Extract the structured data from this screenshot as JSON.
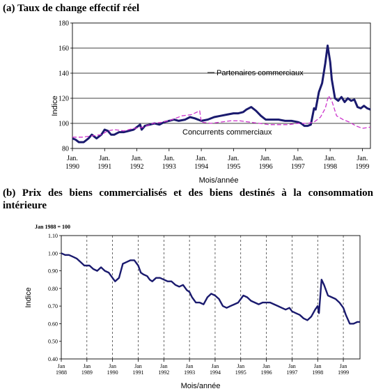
{
  "chart_data": [
    {
      "type": "line",
      "title": "(a) Taux de change effectif réel",
      "xlabel": "Mois/année",
      "ylabel": "Indice",
      "ylim": [
        80,
        180
      ],
      "yticks": [
        "80",
        "100",
        "120",
        "140",
        "160",
        "180"
      ],
      "xticks": [
        {
          "top": "Jan.",
          "bottom": "1990"
        },
        {
          "top": "Jan.",
          "bottom": "1991"
        },
        {
          "top": "Jan.",
          "bottom": "1992"
        },
        {
          "top": "Jan.",
          "bottom": "1993"
        },
        {
          "top": "Jan.",
          "bottom": "1994"
        },
        {
          "top": "Jan.",
          "bottom": "1995"
        },
        {
          "top": "Jan.",
          "bottom": "1996"
        },
        {
          "top": "Jan.",
          "bottom": "1997"
        },
        {
          "top": "Jan.",
          "bottom": "1998"
        },
        {
          "top": "Jan.",
          "bottom": "1999"
        }
      ],
      "xlim": [
        1990.0,
        1999.25
      ],
      "grid": "horizontal",
      "annotations": [
        "Partenaires commerciaux",
        "Concurrents commerciaux"
      ],
      "series": [
        {
          "name": "Partenaires commerciaux",
          "style": "solid-thick",
          "color": "#1a1a6e",
          "x": [
            1990.0,
            1990.1,
            1990.2,
            1990.35,
            1990.5,
            1990.6,
            1990.75,
            1990.9,
            1991.0,
            1991.1,
            1991.2,
            1991.3,
            1991.45,
            1991.6,
            1991.75,
            1991.9,
            1992.0,
            1992.1,
            1992.15,
            1992.25,
            1992.4,
            1992.55,
            1992.7,
            1992.85,
            1993.0,
            1993.15,
            1993.3,
            1993.5,
            1993.65,
            1993.8,
            1994.0,
            1994.2,
            1994.4,
            1994.6,
            1994.8,
            1995.0,
            1995.15,
            1995.3,
            1995.4,
            1995.55,
            1995.7,
            1995.85,
            1996.0,
            1996.2,
            1996.4,
            1996.6,
            1996.8,
            1997.0,
            1997.1,
            1997.2,
            1997.3,
            1997.4,
            1997.5,
            1997.55,
            1997.65,
            1997.75,
            1997.85,
            1997.92,
            1998.0,
            1998.05,
            1998.15,
            1998.25,
            1998.35,
            1998.45,
            1998.55,
            1998.65,
            1998.75,
            1998.85,
            1998.95,
            1999.05,
            1999.15,
            1999.25
          ],
          "values": [
            88,
            87,
            85,
            85,
            88,
            91,
            88,
            91,
            95,
            94,
            91,
            91,
            93,
            93,
            94,
            95,
            97,
            99,
            95,
            98,
            99,
            100,
            99,
            101,
            102,
            103,
            102,
            103,
            105,
            104,
            102,
            103,
            105,
            106,
            107,
            108,
            108,
            109,
            111,
            113,
            110,
            106,
            103,
            103,
            103,
            102,
            102,
            101,
            100,
            98,
            98,
            99,
            112,
            111,
            125,
            132,
            148,
            162,
            149,
            135,
            120,
            118,
            121,
            117,
            120,
            118,
            119,
            113,
            112,
            114,
            112,
            111
          ]
        },
        {
          "name": "Concurrents commerciaux",
          "style": "dashed",
          "color": "#cc33cc",
          "x": [
            1990.0,
            1990.3,
            1990.6,
            1990.9,
            1991.1,
            1991.3,
            1991.6,
            1991.9,
            1992.2,
            1992.5,
            1992.8,
            1993.1,
            1993.4,
            1993.7,
            1993.95,
            1994.0,
            1994.3,
            1994.6,
            1994.9,
            1995.2,
            1995.5,
            1995.8,
            1996.1,
            1996.4,
            1996.7,
            1997.0,
            1997.3,
            1997.5,
            1997.7,
            1997.85,
            1997.95,
            1998.05,
            1998.2,
            1998.4,
            1998.6,
            1998.8,
            1999.0,
            1999.25
          ],
          "values": [
            89,
            89,
            90,
            91,
            94,
            95,
            94,
            96,
            97,
            100,
            101,
            103,
            106,
            107,
            110,
            101,
            100,
            101,
            102,
            102,
            101,
            100,
            99,
            99,
            99,
            100,
            100,
            101,
            105,
            112,
            122,
            118,
            106,
            103,
            101,
            98,
            96,
            97
          ]
        }
      ]
    },
    {
      "type": "line",
      "title": "(b) Prix des biens commercialisés et des biens destinés à la consommation intérieure",
      "note": "Jan 1988 = 100",
      "xlabel": "Mois/année",
      "ylabel": "Indice",
      "ylim": [
        0.4,
        1.1
      ],
      "yticks": [
        "0.40",
        "0.50",
        "0.60",
        "0.70",
        "0.80",
        "0.90",
        "1.00",
        "1.10"
      ],
      "xticks": [
        {
          "top": "Jan",
          "bottom": "1988"
        },
        {
          "top": "Jan",
          "bottom": "1989"
        },
        {
          "top": "Jan",
          "bottom": "1990"
        },
        {
          "top": "Jan",
          "bottom": "1991"
        },
        {
          "top": "Jan",
          "bottom": "1992"
        },
        {
          "top": "Jan",
          "bottom": "1993"
        },
        {
          "top": "Jan",
          "bottom": "1994"
        },
        {
          "top": "Jan",
          "bottom": "1995"
        },
        {
          "top": "Jan",
          "bottom": "1996"
        },
        {
          "top": "Jan",
          "bottom": "1997"
        },
        {
          "top": "Jan",
          "bottom": "1998"
        },
        {
          "top": "Jan",
          "bottom": "1999"
        }
      ],
      "xlim": [
        1988.0,
        1999.65
      ],
      "grid": "vertical-dashed",
      "series": [
        {
          "name": "",
          "color": "#1a1a6e",
          "x": [
            1988.0,
            1988.15,
            1988.3,
            1988.45,
            1988.6,
            1988.75,
            1988.9,
            1989.0,
            1989.1,
            1989.25,
            1989.4,
            1989.55,
            1989.7,
            1989.85,
            1990.0,
            1990.1,
            1990.25,
            1990.4,
            1990.55,
            1990.7,
            1990.85,
            1991.0,
            1991.1,
            1991.2,
            1991.35,
            1991.45,
            1991.55,
            1991.7,
            1991.85,
            1992.0,
            1992.15,
            1992.3,
            1992.45,
            1992.6,
            1992.75,
            1992.9,
            1993.0,
            1993.1,
            1993.25,
            1993.4,
            1993.55,
            1993.7,
            1993.85,
            1994.0,
            1994.15,
            1994.3,
            1994.45,
            1994.6,
            1994.75,
            1994.9,
            1995.0,
            1995.1,
            1995.25,
            1995.4,
            1995.55,
            1995.7,
            1995.85,
            1996.0,
            1996.15,
            1996.3,
            1996.45,
            1996.6,
            1996.75,
            1996.9,
            1997.0,
            1997.15,
            1997.3,
            1997.45,
            1997.6,
            1997.75,
            1997.9,
            1998.0,
            1998.05,
            1998.15,
            1998.25,
            1998.4,
            1998.55,
            1998.7,
            1998.85,
            1999.0,
            1999.1,
            1999.25,
            1999.4,
            1999.55,
            1999.65
          ],
          "values": [
            1.0,
            0.99,
            0.99,
            0.98,
            0.97,
            0.95,
            0.93,
            0.93,
            0.93,
            0.91,
            0.9,
            0.92,
            0.9,
            0.89,
            0.86,
            0.84,
            0.86,
            0.94,
            0.95,
            0.96,
            0.96,
            0.93,
            0.89,
            0.88,
            0.87,
            0.85,
            0.84,
            0.86,
            0.86,
            0.85,
            0.84,
            0.84,
            0.82,
            0.81,
            0.82,
            0.79,
            0.78,
            0.75,
            0.72,
            0.72,
            0.71,
            0.75,
            0.77,
            0.76,
            0.74,
            0.7,
            0.69,
            0.7,
            0.71,
            0.72,
            0.74,
            0.76,
            0.75,
            0.73,
            0.72,
            0.71,
            0.72,
            0.72,
            0.72,
            0.71,
            0.7,
            0.69,
            0.68,
            0.69,
            0.67,
            0.66,
            0.65,
            0.63,
            0.62,
            0.64,
            0.68,
            0.7,
            0.66,
            0.85,
            0.82,
            0.76,
            0.75,
            0.74,
            0.72,
            0.69,
            0.65,
            0.6,
            0.6,
            0.61,
            0.61
          ]
        }
      ]
    }
  ]
}
